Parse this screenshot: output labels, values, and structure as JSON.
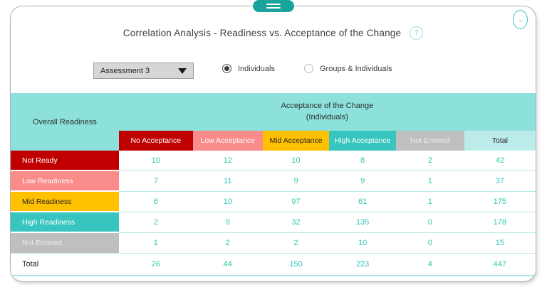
{
  "header": {
    "title": "Correlation Analysis - Readiness vs. Acceptance of the Change",
    "help_icon": "?",
    "minimize_icon": "-"
  },
  "controls": {
    "assessment_dropdown": {
      "value": "Assessment 3"
    },
    "radio_individuals": {
      "label": "Individuals",
      "selected": true
    },
    "radio_groups": {
      "label": "Groups & Individuals",
      "selected": false
    }
  },
  "table": {
    "row_header_title": "Overall Readiness",
    "col_group_title": "Acceptance of the Change",
    "col_group_subtitle": "(Individuals)",
    "columns": [
      {
        "label": "No Acceptance",
        "color": "#c00000",
        "text_color": "#ffffff"
      },
      {
        "label": "Low Acceptance",
        "color": "#f98b8b",
        "text_color": "#ffffff"
      },
      {
        "label": "Mid Acceptance",
        "color": "#ffc000",
        "text_color": "#262626"
      },
      {
        "label": "High Acceptance",
        "color": "#38c5bf",
        "text_color": "#ffffff"
      },
      {
        "label": "Not Entered",
        "color": "#bfbfbf",
        "text_color": "#ececec"
      },
      {
        "label": "Total",
        "color": "#bcece9",
        "text_color": "#262626"
      }
    ],
    "rows": [
      {
        "label": "Not Ready",
        "color": "#c00000",
        "text_color": "#ffffff",
        "values": [
          "10",
          "12",
          "10",
          "8",
          "2",
          "42"
        ]
      },
      {
        "label": "Low Readiness",
        "color": "#f98b8b",
        "text_color": "#ffffff",
        "values": [
          "7",
          "11",
          "9",
          "9",
          "1",
          "37"
        ]
      },
      {
        "label": "Mid Readiness",
        "color": "#ffc000",
        "text_color": "#262626",
        "values": [
          "6",
          "10",
          "97",
          "61",
          "1",
          "175"
        ]
      },
      {
        "label": "High Readiness",
        "color": "#38c5bf",
        "text_color": "#ffffff",
        "values": [
          "2",
          "9",
          "32",
          "135",
          "0",
          "178"
        ]
      },
      {
        "label": "Not Entered",
        "color": "#bfbfbf",
        "text_color": "#ececec",
        "values": [
          "1",
          "2",
          "2",
          "10",
          "0",
          "15"
        ]
      }
    ],
    "total_row": {
      "label": "Total",
      "values": [
        "26",
        "44",
        "150",
        "223",
        "4",
        "447"
      ]
    }
  },
  "colors": {
    "accent_teal": "#18a39c",
    "header_teal": "#8ce1dc",
    "value_teal": "#2fc7b3",
    "card_border": "#b0b0b0"
  }
}
